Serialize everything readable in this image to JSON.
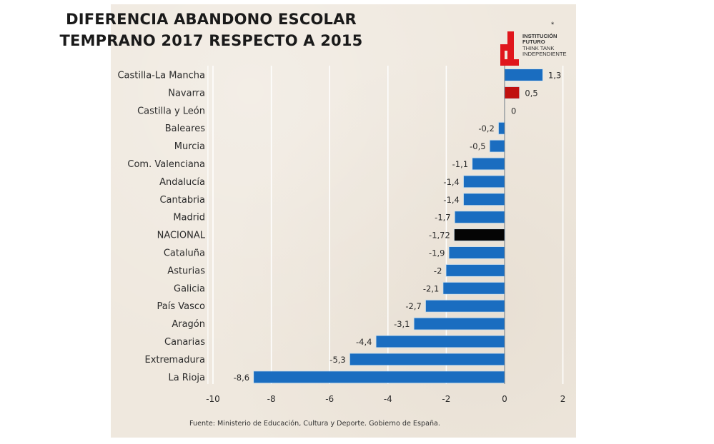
{
  "chart_data": {
    "type": "bar",
    "orientation": "horizontal",
    "title": "DIFERENCIA ABANDONO ESCOLAR TEMPRANO 2017 RESPECTO A 2015",
    "title_lines": [
      "DIFERENCIA ABANDONO ESCOLAR",
      "TEMPRANO 2017 RESPECTO A 2015"
    ],
    "xlabel": "",
    "ylabel": "",
    "xlim": [
      -10,
      2
    ],
    "x_ticks": [
      -10,
      -8,
      -6,
      -4,
      -2,
      0,
      2
    ],
    "x_tick_labels": [
      "-10",
      "-8",
      "-6",
      "-4",
      "-2",
      "0",
      "2"
    ],
    "grid": true,
    "categories": [
      "Castilla-La Mancha",
      "Navarra",
      "Castilla y León",
      "Baleares",
      "Murcia",
      "Com. Valenciana",
      "Andalucía",
      "Cantabria",
      "Madrid",
      "NACIONAL",
      "Cataluña",
      "Asturias",
      "Galicia",
      "País Vasco",
      "Aragón",
      "Canarias",
      "Extremadura",
      "La Rioja"
    ],
    "values": [
      1.3,
      0.5,
      0,
      -0.2,
      -0.5,
      -1.1,
      -1.4,
      -1.4,
      -1.7,
      -1.72,
      -1.9,
      -2,
      -2.1,
      -2.7,
      -3.1,
      -4.4,
      -5.3,
      -8.6
    ],
    "data_labels": [
      "1,3",
      "0,5",
      "0",
      "-0,2",
      "-0,5",
      "-1,1",
      "-1,4",
      "-1,4",
      "-1,7",
      "-1,72",
      "-1,9",
      "-2",
      "-2,1",
      "-2,7",
      "-3,1",
      "-4,4",
      "-5,3",
      "-8,6"
    ],
    "bar_colors": {
      "default": "#1a6dc0",
      "Navarra": "#c0100f",
      "NACIONAL": "#050505"
    },
    "source": "Fuente:  Ministerio de Educación, Cultura y Deporte. Gobierno de España."
  },
  "logo": {
    "line1": "INSTITUCIÓN",
    "line2": "FUTURO",
    "line3": "THINK TANK",
    "line4": "INDEPENDIENTE",
    "star": "*",
    "color": "#e0161c"
  }
}
